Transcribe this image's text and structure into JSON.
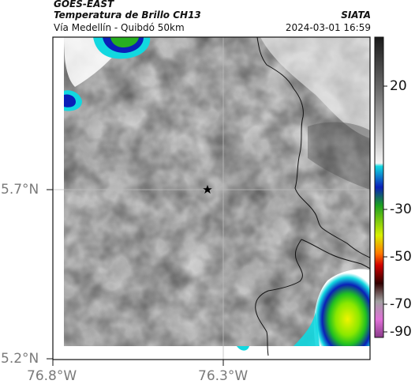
{
  "header": {
    "title": "GOES-EAST",
    "subtitle": "Temperatura de Brillo CH13",
    "location": "Vía Medellín - Quibdó 50km",
    "brand": "SIATA",
    "timestamp": "2024-03-01 16:59"
  },
  "map": {
    "lon_ticks": [
      "76.8°W",
      "76.3°W"
    ],
    "lat_ticks": [
      "5.7°N",
      "5.2°N"
    ],
    "marker": "star",
    "colors": {
      "cloud_gray": "#9a9a9a",
      "cyan": "#12d8e0",
      "blue": "#0a1fb8",
      "green": "#2ad80a",
      "yellow": "#e8f000"
    }
  },
  "colorbar": {
    "ticks": [
      "20",
      "-30",
      "-50",
      "-70",
      "-90"
    ],
    "colors": [
      "#1a1a1a",
      "#8c8c8c",
      "#ffffff",
      "#12d8e0",
      "#0a1fb8",
      "#2ad80a",
      "#e8f000",
      "#ff6a00",
      "#d00000",
      "#300000",
      "#c060c0"
    ]
  }
}
